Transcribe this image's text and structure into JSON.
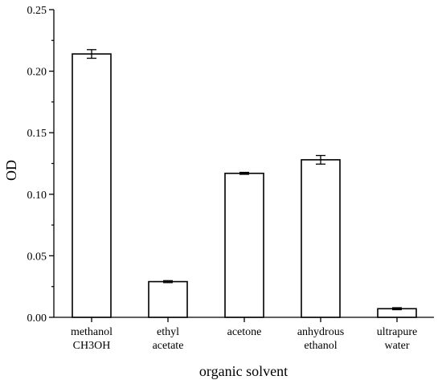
{
  "chart_data": {
    "type": "bar",
    "title": "",
    "xlabel": "organic solvent",
    "ylabel": "OD",
    "categories": [
      [
        "methanol",
        "CH3OH"
      ],
      [
        "ethyl",
        "acetate"
      ],
      [
        "acetone"
      ],
      [
        "anhydrous",
        "ethanol"
      ],
      [
        "ultrapure",
        "water"
      ]
    ],
    "values": [
      0.214,
      0.029,
      0.117,
      0.128,
      0.007
    ],
    "errors": [
      0.0035,
      0.0008,
      0.0008,
      0.0035,
      0.0008
    ],
    "ylim": [
      0,
      0.25
    ],
    "yticks": [
      "0.00",
      "0.05",
      "0.10",
      "0.15",
      "0.20",
      "0.25"
    ],
    "grid": false,
    "bar_fill": "#ffffff",
    "bar_stroke": "#000000"
  }
}
